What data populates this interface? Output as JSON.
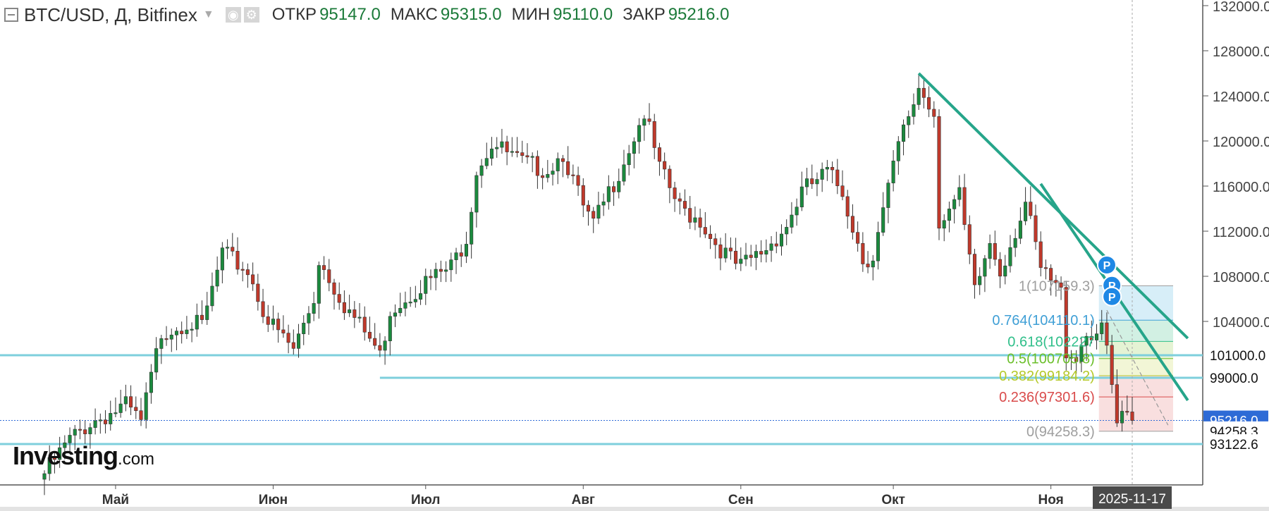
{
  "header": {
    "symbol": "BTC/USD, Д, Bitfinex",
    "dropdown_icon": "chevron-down-icon",
    "icons": [
      "eye-icon",
      "gear-icon"
    ],
    "open_label": "ОТКР",
    "open_value": "95147.0",
    "high_label": "МАКС",
    "high_value": "95315.0",
    "low_label": "МИН",
    "low_value": "95110.0",
    "close_label": "ЗАКР",
    "close_value": "95216.0"
  },
  "logo": {
    "main": "Investing",
    "suffix": ".com"
  },
  "colors": {
    "up": "#1b8a3e",
    "down": "#c0392b",
    "trend": "#26a58a",
    "level_line": "#7ecfdc",
    "price_badge": "#2e6bd6",
    "axis_badge": "#4a4a4a"
  },
  "chart_data": {
    "type": "candlestick",
    "title": "BTC/USD, Д, Bitfinex",
    "xlabel": "",
    "ylabel": "",
    "ylim": [
      89500,
      132500
    ],
    "y_ticks": [
      "132000.0",
      "128000.0",
      "124000.0",
      "120000.0",
      "116000.0",
      "112000.0",
      "108000.0",
      "104000.0"
    ],
    "x_ticks": [
      {
        "label": "Май",
        "date": "2025-05-01"
      },
      {
        "label": "Июн",
        "date": "2025-06-01"
      },
      {
        "label": "Июл",
        "date": "2025-07-01"
      },
      {
        "label": "Авг",
        "date": "2025-08-01"
      },
      {
        "label": "Сен",
        "date": "2025-09-01"
      },
      {
        "label": "Окт",
        "date": "2025-10-01"
      },
      {
        "label": "Ноя",
        "date": "2025-11-01"
      }
    ],
    "start_date": "2025-04-17",
    "end_date": "2025-11-17",
    "current_date_label": "2025-11-17",
    "key_points": [
      [
        "2025-04-17",
        90500
      ],
      [
        "2025-04-22",
        93500
      ],
      [
        "2025-04-26",
        95000
      ],
      [
        "2025-05-03",
        96500
      ],
      [
        "2025-05-06",
        95000
      ],
      [
        "2025-05-10",
        103000
      ],
      [
        "2025-05-15",
        104000
      ],
      [
        "2025-05-18",
        103500
      ],
      [
        "2025-05-22",
        110000
      ],
      [
        "2025-05-27",
        108500
      ],
      [
        "2025-05-31",
        104000
      ],
      [
        "2025-06-05",
        101500
      ],
      [
        "2025-06-09",
        106000
      ],
      [
        "2025-06-10",
        109500
      ],
      [
        "2025-06-15",
        105500
      ],
      [
        "2025-06-21",
        101800
      ],
      [
        "2025-06-22",
        100900
      ],
      [
        "2025-06-24",
        105000
      ],
      [
        "2025-06-30",
        107200
      ],
      [
        "2025-07-06",
        108800
      ],
      [
        "2025-07-09",
        111500
      ],
      [
        "2025-07-11",
        117500
      ],
      [
        "2025-07-14",
        119800
      ],
      [
        "2025-07-20",
        118000
      ],
      [
        "2025-07-25",
        117500
      ],
      [
        "2025-07-28",
        119000
      ],
      [
        "2025-08-01",
        114000
      ],
      [
        "2025-08-03",
        112500
      ],
      [
        "2025-08-08",
        117300
      ],
      [
        "2025-08-13",
        122500
      ],
      [
        "2025-08-16",
        117500
      ],
      [
        "2025-08-20",
        114000
      ],
      [
        "2025-08-24",
        113000
      ],
      [
        "2025-08-26",
        111500
      ],
      [
        "2025-08-31",
        109000
      ],
      [
        "2025-09-01",
        108800
      ],
      [
        "2025-09-06",
        110500
      ],
      [
        "2025-09-10",
        112500
      ],
      [
        "2025-09-13",
        115500
      ],
      [
        "2025-09-18",
        117200
      ],
      [
        "2025-09-21",
        115500
      ],
      [
        "2025-09-25",
        109500
      ],
      [
        "2025-09-27",
        109800
      ],
      [
        "2025-10-02",
        119500
      ],
      [
        "2025-10-06",
        124800
      ],
      [
        "2025-10-09",
        122500
      ],
      [
        "2025-10-10",
        113000
      ],
      [
        "2025-10-14",
        115000
      ],
      [
        "2025-10-17",
        106500
      ],
      [
        "2025-10-20",
        111000
      ],
      [
        "2025-10-22",
        108500
      ],
      [
        "2025-10-27",
        114500
      ],
      [
        "2025-10-30",
        108500
      ],
      [
        "2025-11-03",
        106500
      ],
      [
        "2025-11-04",
        101500
      ],
      [
        "2025-11-06",
        101000
      ],
      [
        "2025-11-08",
        103000
      ],
      [
        "2025-11-11",
        103000
      ],
      [
        "2025-11-12",
        101500
      ],
      [
        "2025-11-14",
        94800
      ],
      [
        "2025-11-15",
        95300
      ],
      [
        "2025-11-17",
        95216
      ]
    ],
    "horizontal_levels": [
      {
        "price": 101000,
        "label": "101000.0"
      },
      {
        "price": 99000,
        "label": "99000.0"
      },
      {
        "price": 93122.6,
        "label": "93122.6"
      }
    ],
    "support_line": {
      "price": 99000,
      "from_date": "2025-06-22"
    },
    "current_price": {
      "price": 95216,
      "label": "95216.0"
    },
    "fib_low_label": "94258.3",
    "fibonacci": {
      "from_date": "2025-11-11",
      "to_date": "2025-11-17",
      "levels": [
        {
          "ratio": "1",
          "price": 107159.3,
          "label": "1(107159.3)",
          "color": "#9e9e9e",
          "fill": "#e6e6e6"
        },
        {
          "ratio": "0.764",
          "price": 104110.1,
          "label": "0.764(104110.1)",
          "color": "#3f9fd6",
          "fill": "#d3ecf7"
        },
        {
          "ratio": "0.618",
          "price": 102227,
          "label": "0.618(102227",
          "color": "#2fbf8a",
          "fill": "#cdeee0"
        },
        {
          "ratio": "0.5",
          "price": 100705.8,
          "label": "0.5(100705.8)",
          "color": "#6bbf2a",
          "fill": "#e2f2cf"
        },
        {
          "ratio": "0.382",
          "price": 99184.2,
          "label": "0.382(99184.2)",
          "color": "#b5c92a",
          "fill": "#f1f5d2"
        },
        {
          "ratio": "0.236",
          "price": 97301.6,
          "label": "0.236(97301.6)",
          "color": "#d94b4b",
          "fill": "#f8dcdc"
        },
        {
          "ratio": "0",
          "price": 94258.3,
          "label": "0(94258.3)",
          "color": "#9e9e9e",
          "fill": "#f8dcdc"
        }
      ]
    },
    "trend_lines": [
      {
        "from": [
          "2025-10-06",
          126000
        ],
        "to": [
          "2025-11-21",
          102500
        ]
      },
      {
        "from": [
          "2025-10-30",
          116200
        ],
        "to": [
          "2025-11-21",
          97000
        ]
      }
    ],
    "dashed_projection": {
      "from": [
        "2025-11-12",
        105000
      ],
      "to": [
        "2025-11-16",
        94800
      ]
    },
    "markers": [
      {
        "label": "P",
        "date": "2025-11-12",
        "price": 109000
      },
      {
        "label": "P",
        "date": "2025-11-13",
        "price": 107200
      },
      {
        "label": "P",
        "date": "2025-11-13",
        "price": 106200
      }
    ]
  }
}
